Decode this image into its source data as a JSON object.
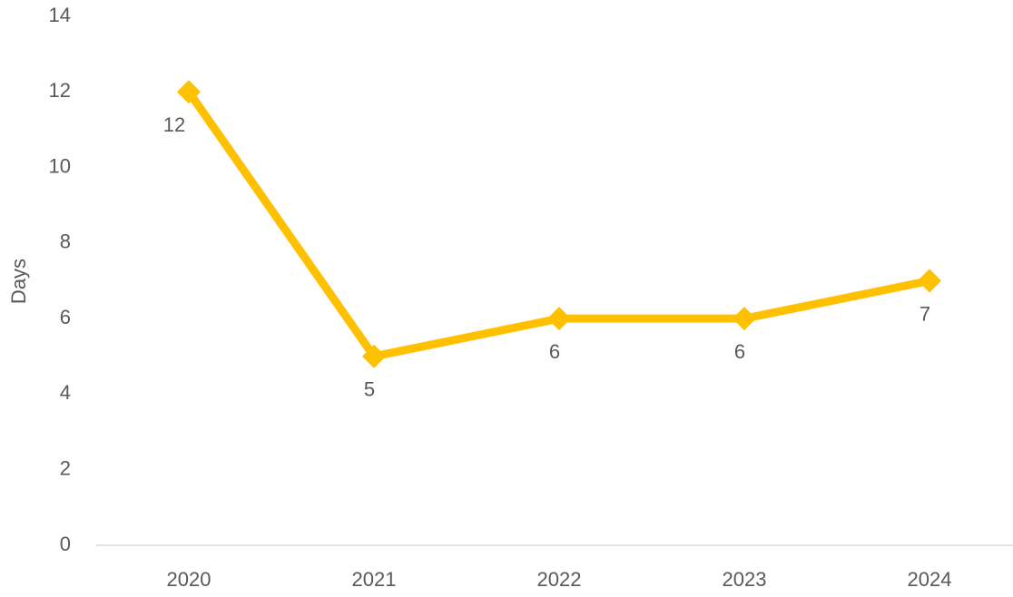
{
  "chart_data": {
    "type": "line",
    "y_label": "Days",
    "categories": [
      "2020",
      "2021",
      "2022",
      "2023",
      "2024"
    ],
    "values": [
      12,
      5,
      6,
      6,
      7
    ],
    "color": "#FFC000",
    "ylim": [
      0,
      14
    ],
    "yticks": [
      0,
      2,
      4,
      6,
      8,
      10,
      12,
      14
    ],
    "grid": false
  }
}
